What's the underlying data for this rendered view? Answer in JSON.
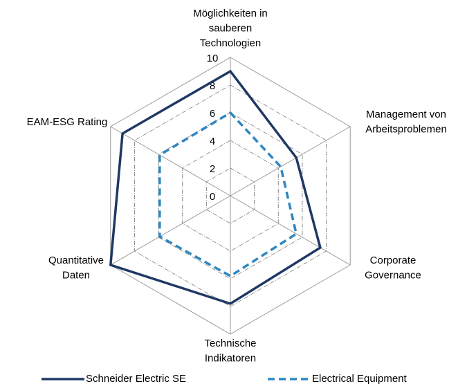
{
  "chart_data": {
    "type": "radar",
    "categories": [
      "Möglichkeiten in\nsauberen\nTechnologien",
      "Management von\nArbeitsproblemen",
      "Corporate\nGovernance",
      "Technische\nIndikatoren",
      "Quantitative\nDaten",
      "EAM-ESG Rating"
    ],
    "series": [
      {
        "name": "Schneider Electric SE",
        "color": "#1f3864",
        "style": "solid",
        "values": [
          9,
          5.5,
          7.5,
          7.8,
          10,
          9
        ]
      },
      {
        "name": "Electrical Equipment",
        "color": "#2e86c1",
        "style": "dashed",
        "values": [
          6,
          4.2,
          5.5,
          5.8,
          5.9,
          5.9
        ]
      }
    ],
    "ylim": [
      0,
      10
    ],
    "yticks": [
      0,
      2,
      4,
      6,
      8,
      10
    ],
    "grid": true,
    "legend": "bottom"
  }
}
